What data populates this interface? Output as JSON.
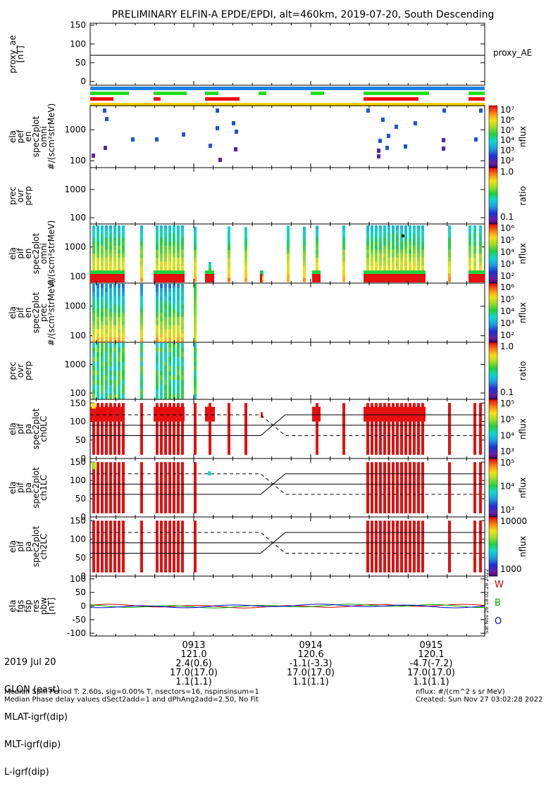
{
  "title": "PRELIMINARY ELFIN-A EPDE/EPDI, alt=460km, 2019-07-20, South Descending",
  "panels": [
    {
      "id": "proxy",
      "ylabel": [
        "proxy_ae",
        "[nT]"
      ],
      "yticks": [
        "150",
        "100",
        "50",
        "0"
      ],
      "right_label": "proxy_AE"
    },
    {
      "id": "spec1",
      "ylabel": [
        "ela",
        "pef",
        "en",
        "spec2plot",
        "omni",
        "#/(scm²strMeV)"
      ],
      "yticks": [
        "1000",
        "100"
      ]
    },
    {
      "id": "ratio1",
      "ylabel": [
        "prec",
        "ovr",
        "perp"
      ],
      "yticks": [
        "1000",
        "100"
      ]
    },
    {
      "id": "spec2",
      "ylabel": [
        "ela",
        "pif",
        "en",
        "spec2plot",
        "omni",
        "#/(scm²strMeV)"
      ],
      "yticks": [
        "1000",
        "100"
      ]
    },
    {
      "id": "spec3",
      "ylabel": [
        "ela",
        "pif",
        "en",
        "spec2plot",
        "prec",
        "#/(scm²strMeV)"
      ],
      "yticks": [
        "1000",
        "100"
      ]
    },
    {
      "id": "ratio2",
      "ylabel": [
        "prec",
        "ovr",
        "perp"
      ],
      "yticks": [
        "1000",
        "100"
      ]
    },
    {
      "id": "pa0",
      "ylabel": [
        "ela",
        "pif",
        "pa",
        "spec2plot",
        "ch0LC"
      ],
      "yticks": [
        "150",
        "100",
        "50",
        "0"
      ]
    },
    {
      "id": "pa1",
      "ylabel": [
        "ela",
        "pif",
        "pa",
        "spec2plot",
        "ch1LC"
      ],
      "yticks": [
        "150",
        "100",
        "50",
        "0"
      ]
    },
    {
      "id": "pa2",
      "ylabel": [
        "ela",
        "pif",
        "pa",
        "spec2plot",
        "ch2LC"
      ],
      "yticks": [
        "150",
        "100",
        "50",
        "0"
      ]
    },
    {
      "id": "fgs",
      "ylabel": [
        "ela",
        "fgs",
        "fsp",
        "res",
        "pbw",
        "[nT]"
      ],
      "yticks": [
        "100",
        "50",
        "0",
        "-50",
        "-100"
      ]
    }
  ],
  "colorbars": [
    {
      "labels": [
        "10⁷",
        "10⁶",
        "10⁵",
        "10⁴",
        "10³",
        "10²"
      ],
      "unit": "nflux"
    },
    {
      "labels": [
        "1.0",
        "0.1"
      ],
      "unit": "ratio"
    },
    {
      "labels": [
        "10⁶",
        "10⁵",
        "10⁴",
        "10³",
        "10²"
      ],
      "unit": "nflux"
    },
    {
      "labels": [
        "10⁶",
        "10⁵",
        "10⁴",
        "10³",
        "10²"
      ],
      "unit": "nflux"
    },
    {
      "labels": [
        "1.0",
        "0.1"
      ],
      "unit": "ratio"
    },
    {
      "labels": [
        "10⁵",
        "10⁵",
        "10⁴",
        "10³"
      ],
      "unit": "nflux"
    },
    {
      "labels": [
        "10⁵",
        "10⁴",
        "10³"
      ],
      "unit": "nflux"
    },
    {
      "labels": [
        "10000",
        "1000"
      ],
      "unit": "nflux"
    }
  ],
  "wbo_labels": [
    "W",
    "B",
    "O"
  ],
  "side_stamp": "Sat Nov 26 18:02:28 2022",
  "time_axis": {
    "ticks": [
      "0913",
      "0914",
      "0915"
    ],
    "rows": [
      {
        "label": "2019 Jul 20",
        "values": [
          "0913",
          "0914",
          "0915"
        ]
      },
      {
        "label": "GLON (east)",
        "values": [
          "121.0",
          "120.6",
          "120.1"
        ]
      },
      {
        "label": "MLAT-igrf(dip)",
        "values": [
          "2.4(0.6)",
          "-1.1(-3.3)",
          "-4.7(-7.2)"
        ]
      },
      {
        "label": "MLT-igrf(dip)",
        "values": [
          "17.0(17.0)",
          "17.0(17.0)",
          "17.0(17.0)"
        ]
      },
      {
        "label": "L-igrf(dip)",
        "values": [
          "1.1(1.1)",
          "1.1(1.1)",
          "1.1(1.1)"
        ]
      }
    ]
  },
  "footer": {
    "left1": "Median Spin Period T: 2.60s, sig=0.00% T, nsectors=16, nspinsinsum=1",
    "left2": "Median Phase delay values dSect2add=1 and dPhAng2add=2.50, No Fit",
    "right1": "nflux: #/(cm^2 s sr MeV)",
    "right2": "Created: Sun Nov 27 03:02:28 2022"
  },
  "chart_data": {
    "type": "line",
    "title": "PRELIMINARY ELFIN-A EPDE/EPDI, alt=460km, 2019-07-20, South Descending",
    "x_ticks": [
      "0913",
      "0914",
      "0915"
    ],
    "proxy_ae": {
      "ylim": [
        -10,
        155
      ],
      "value_nT": 70
    },
    "pitch_angle_lines": {
      "ylim": [
        0,
        160
      ],
      "solid": [
        118,
        90,
        62
      ],
      "dashed": [
        118,
        62
      ]
    },
    "fgs": {
      "ylim": [
        -110,
        110
      ],
      "series": [
        {
          "name": "W",
          "color": "#cc0000"
        },
        {
          "name": "B",
          "color": "#00aa00"
        },
        {
          "name": "O",
          "color": "#0000cc"
        }
      ]
    },
    "status_bars": {
      "colors": [
        "#1e7fe6",
        "#22dd22",
        "#ee1111",
        "#f5d000"
      ]
    }
  }
}
